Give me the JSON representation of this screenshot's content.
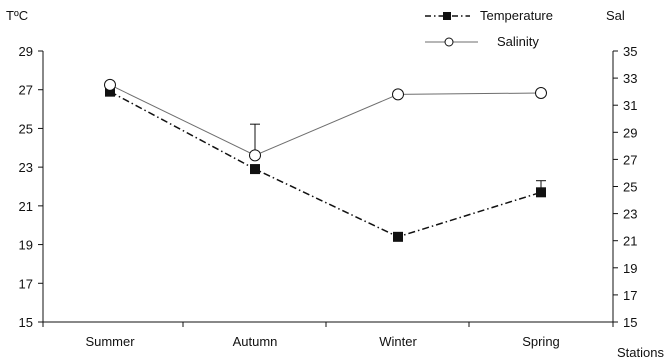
{
  "chart_data": {
    "type": "line",
    "categories": [
      "Summer",
      "Autumn",
      "Winter",
      "Spring"
    ],
    "xlabel": "Stations",
    "y_left": {
      "label": "TºC",
      "ylim": [
        15,
        29
      ],
      "ticks": [
        "15",
        "17",
        "19",
        "21",
        "23",
        "25",
        "27",
        "29"
      ]
    },
    "y_right": {
      "label": "Sal",
      "ylim": [
        15,
        35
      ],
      "ticks": [
        "15",
        "17",
        "19",
        "21",
        "23",
        "25",
        "27",
        "29",
        "31",
        "33",
        "35"
      ]
    },
    "series": [
      {
        "name": "Temperature",
        "axis": "left",
        "values": [
          26.9,
          22.9,
          19.4,
          21.7
        ],
        "error_upper": [
          null,
          null,
          null,
          0.6
        ],
        "line_style": "dash-dot",
        "marker": "filled-square"
      },
      {
        "name": "Salinity",
        "axis": "right",
        "values": [
          32.5,
          27.3,
          31.8,
          31.9
        ],
        "error_upper": [
          null,
          2.3,
          null,
          null
        ],
        "line_style": "solid",
        "marker": "open-circle"
      }
    ],
    "legend_position": "top-right",
    "grid": false,
    "colors": {
      "ink": "#111111",
      "salinity_line": "#6e6e6e"
    }
  }
}
